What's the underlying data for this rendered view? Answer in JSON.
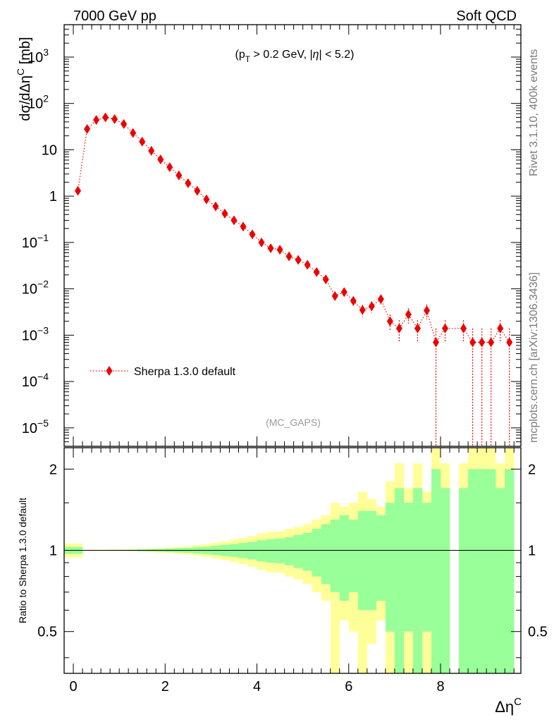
{
  "header": {
    "left_label": "7000 GeV pp",
    "right_label": "Soft QCD"
  },
  "side_labels": {
    "rivet": "Rivet 3.1.10,  400k events",
    "mcplots": "mcplots.cern.ch [arXiv:1306.3436]"
  },
  "annotations": {
    "cut_label": "(p_T > 0.2 GeV, |η| < 5.2)",
    "analysis_tag": "(MC_GAPS)"
  },
  "colors": {
    "data": "#ee0000",
    "band_outer": "#ffff99",
    "band_inner": "#99ff99",
    "axis": "#000000"
  },
  "chart_data": [
    {
      "type": "scatter",
      "ylabel": "dσ/dΔη^C [mb]",
      "yscale": "log",
      "xlim": [
        -0.2,
        9.75
      ],
      "ylim": [
        4e-06,
        5000
      ],
      "y_tick_labels": [
        "10^−5",
        "10^−4",
        "10^−3",
        "10^−2",
        "10^−1",
        "1",
        "10",
        "10^2",
        "10^3"
      ],
      "legend": {
        "position": "bottom-left"
      },
      "series": [
        {
          "name": "Sherpa 1.3.0 default",
          "style": "dotted-line-diamond-markers",
          "x": [
            0.1,
            0.3,
            0.5,
            0.7,
            0.9,
            1.1,
            1.3,
            1.5,
            1.7,
            1.9,
            2.1,
            2.3,
            2.5,
            2.7,
            2.9,
            3.1,
            3.3,
            3.5,
            3.7,
            3.9,
            4.1,
            4.3,
            4.5,
            4.7,
            4.9,
            5.1,
            5.3,
            5.5,
            5.7,
            5.9,
            6.1,
            6.3,
            6.5,
            6.7,
            6.9,
            7.1,
            7.3,
            7.5,
            7.7,
            7.9,
            8.1,
            8.5,
            8.7,
            8.9,
            9.1,
            9.3,
            9.5
          ],
          "y": [
            1.3,
            28,
            44,
            50,
            46,
            36,
            23,
            15,
            9.5,
            6.2,
            4.2,
            2.8,
            1.9,
            1.3,
            0.85,
            0.6,
            0.42,
            0.3,
            0.22,
            0.15,
            0.1,
            0.075,
            0.07,
            0.05,
            0.042,
            0.033,
            0.023,
            0.016,
            0.007,
            0.0085,
            0.0055,
            0.0035,
            0.0042,
            0.006,
            0.002,
            0.0014,
            0.0028,
            0.0014,
            0.0034,
            0.0007,
            0.0014,
            0.0014,
            0.0007,
            0.0007,
            0.0007,
            0.0014,
            0.0007
          ],
          "y_err": [
            0.03,
            0.2,
            0.3,
            0.3,
            0.3,
            0.25,
            0.2,
            0.15,
            0.1,
            0.07,
            0.05,
            0.04,
            0.03,
            0.025,
            0.02,
            0.015,
            0.012,
            0.01,
            0.008,
            0.006,
            0.005,
            0.004,
            0.004,
            0.003,
            0.003,
            0.0025,
            0.002,
            0.0016,
            0.0012,
            0.0014,
            0.0012,
            0.001,
            0.0012,
            0.0014,
            0.0008,
            0.0007,
            0.001,
            0.0007,
            0.0012,
            0.0007,
            0.0007,
            0.0007,
            0.0007,
            0.0007,
            0.0007,
            0.0007,
            0.0007
          ]
        }
      ]
    },
    {
      "type": "area",
      "xlabel": "Δη^C",
      "ylabel": "Ratio to Sherpa 1.3.0 default",
      "xlim": [
        -0.2,
        9.75
      ],
      "ylim": [
        0.35,
        2.4
      ],
      "x_ticks": [
        0,
        2,
        4,
        6,
        8
      ],
      "y_ticks": [
        0.5,
        1,
        2
      ],
      "reference_line": 1,
      "bins": [
        -0.2,
        0.2,
        0.4,
        0.6,
        0.8,
        1.0,
        1.2,
        1.4,
        1.6,
        1.8,
        2.0,
        2.2,
        2.4,
        2.6,
        2.8,
        3.0,
        3.2,
        3.4,
        3.6,
        3.8,
        4.0,
        4.2,
        4.4,
        4.6,
        4.8,
        5.0,
        5.2,
        5.4,
        5.6,
        5.8,
        6.0,
        6.2,
        6.4,
        6.6,
        6.8,
        7.0,
        7.2,
        7.4,
        7.6,
        7.8,
        8.0,
        8.2,
        8.4,
        8.6,
        8.8,
        9.0,
        9.2,
        9.4,
        9.6
      ],
      "series": [
        {
          "name": "",
          "role": "outer band",
          "upper": [
            1.06,
            1.005,
            1.005,
            1.005,
            1.006,
            1.007,
            1.009,
            1.011,
            1.015,
            1.019,
            1.023,
            1.03,
            1.036,
            1.045,
            1.055,
            1.066,
            1.08,
            1.095,
            1.11,
            1.13,
            1.155,
            1.17,
            1.175,
            1.2,
            1.22,
            1.25,
            1.3,
            1.35,
            1.5,
            1.45,
            1.5,
            1.65,
            1.55,
            1.45,
            1.8,
            2.1,
            1.7,
            2.1,
            1.65,
            2.4,
            2.1,
            null,
            2.1,
            2.4,
            2.4,
            2.4,
            2.1,
            2.4
          ],
          "lower": [
            0.94,
            0.995,
            0.995,
            0.995,
            0.994,
            0.993,
            0.991,
            0.989,
            0.985,
            0.981,
            0.977,
            0.97,
            0.964,
            0.955,
            0.945,
            0.934,
            0.92,
            0.905,
            0.89,
            0.87,
            0.845,
            0.83,
            0.825,
            0.8,
            0.78,
            0.75,
            0.7,
            0.65,
            0.35,
            0.55,
            0.5,
            0.35,
            0.45,
            0.55,
            0.35,
            0.35,
            0.35,
            0.35,
            0.35,
            0.35,
            0.35,
            null,
            0.35,
            0.35,
            0.35,
            0.35,
            0.35,
            0.35
          ]
        },
        {
          "name": "",
          "role": "inner band",
          "upper": [
            1.03,
            1.003,
            1.003,
            1.003,
            1.004,
            1.005,
            1.006,
            1.008,
            1.01,
            1.012,
            1.015,
            1.018,
            1.022,
            1.027,
            1.032,
            1.04,
            1.048,
            1.056,
            1.065,
            1.075,
            1.09,
            1.1,
            1.105,
            1.12,
            1.14,
            1.16,
            1.2,
            1.25,
            1.3,
            1.35,
            1.3,
            1.4,
            1.4,
            1.35,
            1.5,
            1.7,
            1.5,
            1.7,
            1.5,
            2.0,
            1.7,
            null,
            1.7,
            2.0,
            2.0,
            2.0,
            1.7,
            2.0
          ],
          "lower": [
            0.97,
            0.997,
            0.997,
            0.997,
            0.996,
            0.995,
            0.994,
            0.992,
            0.99,
            0.988,
            0.985,
            0.982,
            0.978,
            0.973,
            0.968,
            0.96,
            0.952,
            0.944,
            0.935,
            0.925,
            0.91,
            0.9,
            0.895,
            0.88,
            0.86,
            0.84,
            0.8,
            0.75,
            0.7,
            0.65,
            0.7,
            0.6,
            0.6,
            0.65,
            0.5,
            0.3,
            0.5,
            0.3,
            0.5,
            0.3,
            0.3,
            null,
            0.3,
            0.3,
            0.3,
            0.3,
            0.3,
            0.3
          ]
        }
      ]
    }
  ]
}
